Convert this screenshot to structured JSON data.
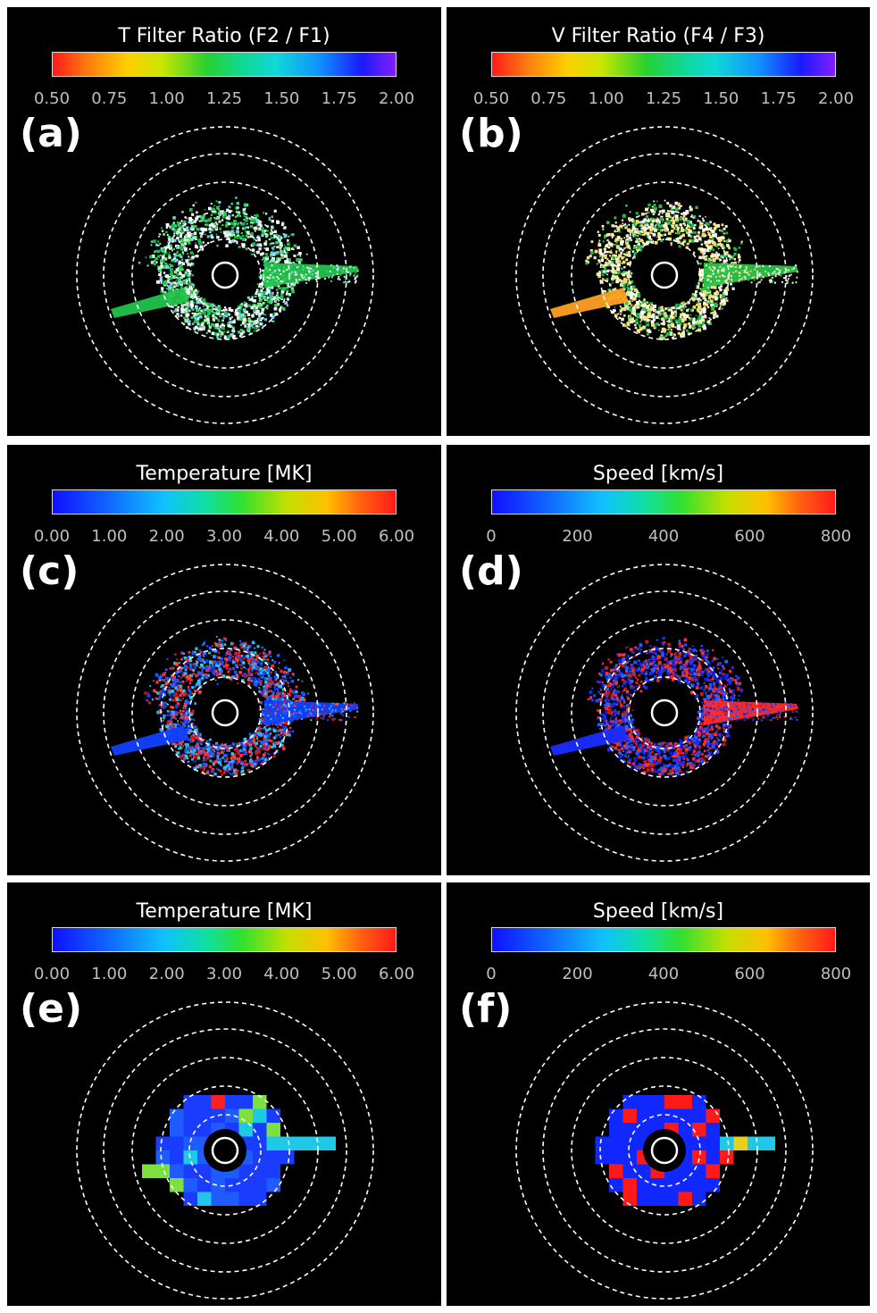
{
  "panels": [
    {
      "id": "a",
      "title": "T Filter Ratio (F2 / F1)",
      "label": "(a)",
      "ticks": [
        "0.50",
        "0.75",
        "1.00",
        "1.25",
        "1.50",
        "1.75",
        "2.00"
      ],
      "colormap": "ratio",
      "content": "ratio",
      "palette": [
        "#ffffff",
        "#22c24a",
        "#33d96a",
        "#18b848",
        "#9ff0a0",
        "#7ad0f0",
        "#e8f4ff",
        "#ffffff"
      ]
    },
    {
      "id": "b",
      "title": "V Filter Ratio (F4 / F3)",
      "label": "(b)",
      "ticks": [
        "0.50",
        "0.75",
        "1.00",
        "1.25",
        "1.50",
        "1.75",
        "2.00"
      ],
      "colormap": "ratio",
      "content": "ratio",
      "palette": [
        "#ffffff",
        "#2ac24a",
        "#d8e89a",
        "#f0d860",
        "#18b848",
        "#ffffff",
        "#fff7c0",
        "#ffe070"
      ]
    },
    {
      "id": "c",
      "title": "Temperature [MK]",
      "label": "(c)",
      "ticks": [
        "0.00",
        "1.00",
        "2.00",
        "3.00",
        "4.00",
        "5.00",
        "6.00"
      ],
      "colormap": "jet",
      "content": "scatter",
      "palette": [
        "#ff2a2a",
        "#1040ff",
        "#2050ff",
        "#d01818",
        "#28d0e0",
        "#2060ff",
        "#ff4040",
        "#40a0ff"
      ]
    },
    {
      "id": "d",
      "title": "Speed [km/s]",
      "label": "(d)",
      "ticks": [
        "0",
        "200",
        "400",
        "600",
        "800"
      ],
      "colormap": "jet",
      "content": "scatter",
      "palette": [
        "#2030ff",
        "#ff2a2a",
        "#0a20e0",
        "#2050ff",
        "#d01818",
        "#1030ff",
        "#ff3030",
        "#3060ff"
      ]
    },
    {
      "id": "e",
      "title": "Temperature [MK]",
      "label": "(e)",
      "ticks": [
        "0.00",
        "1.00",
        "2.00",
        "3.00",
        "4.00",
        "5.00",
        "6.00"
      ],
      "colormap": "jet",
      "content": "grid",
      "palette": [
        "#1a3cff",
        "#1f5cff",
        "#20c8e8",
        "#7ce040",
        "#ff2020"
      ]
    },
    {
      "id": "f",
      "title": "Speed [km/s]",
      "label": "(f)",
      "ticks": [
        "0",
        "200",
        "400",
        "600",
        "800"
      ],
      "colormap": "jet",
      "content": "grid",
      "palette": [
        "#1028ff",
        "#ff1a1a",
        "#20c8e8",
        "#e8d020"
      ]
    }
  ],
  "colors": {
    "background": "#000000",
    "separator": "#ffffff",
    "circle": "#ffffff"
  }
}
